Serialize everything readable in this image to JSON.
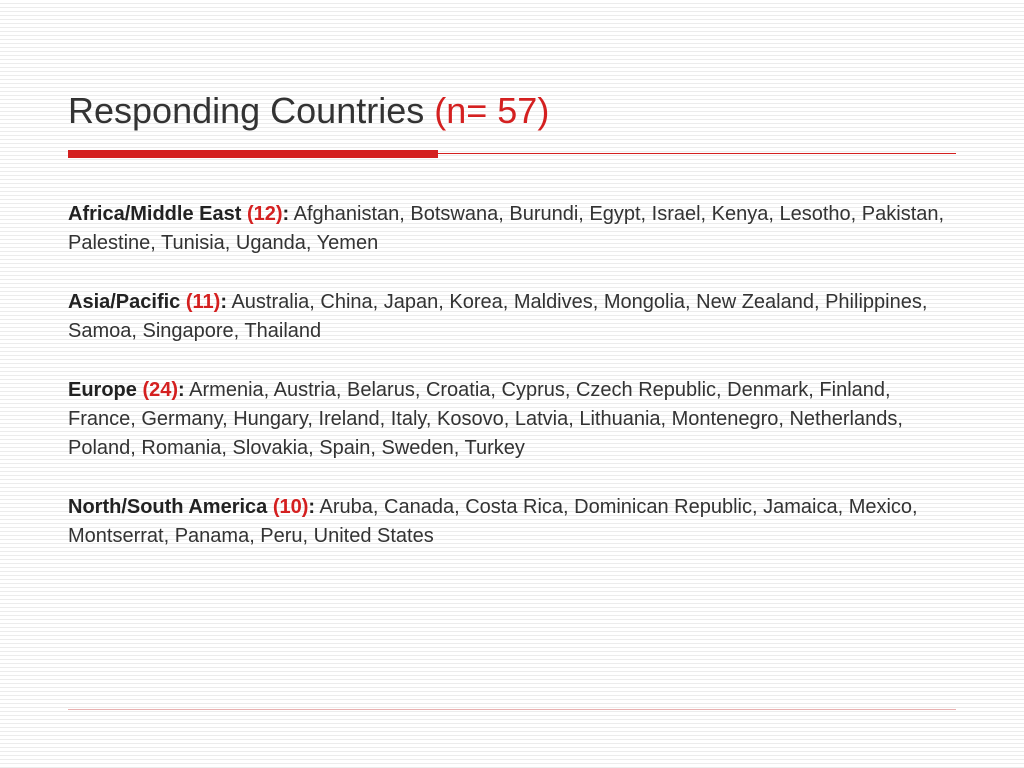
{
  "title": {
    "text": "Responding Countries",
    "count": "(n= 57)"
  },
  "regions": [
    {
      "name": "Africa/Middle East",
      "count": "(12)",
      "countries": "Afghanistan, Botswana, Burundi, Egypt, Israel, Kenya, Lesotho, Pakistan, Palestine, Tunisia, Uganda, Yemen"
    },
    {
      "name": "Asia/Pacific",
      "count": "(11)",
      "countries": "Australia, China, Japan, Korea, Maldives, Mongolia, New Zealand, Philippines, Samoa, Singapore, Thailand"
    },
    {
      "name": "Europe",
      "count": "(24)",
      "countries": "Armenia, Austria, Belarus, Croatia, Cyprus, Czech Republic, Denmark, Finland, France, Germany, Hungary, Ireland, Italy, Kosovo, Latvia, Lithuania, Montenegro, Netherlands, Poland, Romania, Slovakia, Spain, Sweden, Turkey"
    },
    {
      "name": "North/South America",
      "count": "(10)",
      "countries": "Aruba, Canada, Costa Rica, Dominican Republic, Jamaica, Mexico, Montserrat, Panama, Peru, United States"
    }
  ],
  "styling": {
    "title_fontsize": 36,
    "body_fontsize": 20,
    "accent_color": "#d42020",
    "text_color": "#333333",
    "background_color": "#ffffff",
    "stripe_color": "#ececec",
    "rule_thick_width": 370,
    "font_family": "Verdana"
  }
}
